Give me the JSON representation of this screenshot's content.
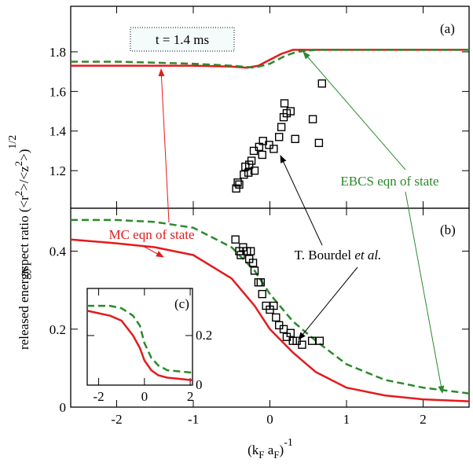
{
  "chart_data": [
    {
      "type": "line",
      "panel_label": "(a)",
      "annotations": [
        "t = 1.4 ms",
        "MC eqn of state",
        "EBCS eqn of state"
      ],
      "ylabel_parts": [
        "aspect ratio (<r",
        "2",
        ">/<z",
        "2",
        ">)",
        "1/2"
      ],
      "xlim": [
        -2.6,
        2.6
      ],
      "ylim": [
        1.01,
        2.03
      ],
      "xticks": [
        -2,
        -1,
        0,
        1,
        2
      ],
      "yticks": [
        1.2,
        1.4,
        1.6,
        1.8
      ],
      "xtick_labels": false,
      "series": [
        {
          "name": "MC eqn of state",
          "color": "#e41a1c",
          "dashed": false,
          "x": [
            -2.6,
            -2,
            -1,
            -0.5,
            -0.3,
            -0.15,
            0,
            0.15,
            0.3,
            0.6,
            1,
            2,
            2.6
          ],
          "values": [
            1.73,
            1.73,
            1.73,
            1.725,
            1.72,
            1.73,
            1.76,
            1.79,
            1.81,
            1.81,
            1.81,
            1.81,
            1.81
          ]
        },
        {
          "name": "EBCS eqn of state",
          "color": "#2a8a2a",
          "dashed": true,
          "x": [
            -2.6,
            -2,
            -1,
            -0.5,
            -0.2,
            0,
            0.1,
            0.2,
            0.35,
            0.6,
            1,
            2,
            2.6
          ],
          "values": [
            1.75,
            1.75,
            1.74,
            1.73,
            1.72,
            1.74,
            1.76,
            1.78,
            1.8,
            1.81,
            1.81,
            1.81,
            1.81
          ]
        },
        {
          "name": "T. Bourdel et al.",
          "color": "#000000",
          "marker": "square",
          "x": [
            -0.44,
            -0.42,
            -0.4,
            -0.34,
            -0.32,
            -0.27,
            -0.24,
            -0.28,
            -0.2,
            -0.21,
            -0.14,
            -0.1,
            -0.09,
            -0.01,
            0.05,
            0.12,
            0.15,
            0.18,
            0.22,
            0.19,
            0.27,
            0.33,
            0.56,
            0.64,
            0.68
          ],
          "values": [
            1.11,
            1.14,
            1.13,
            1.18,
            1.22,
            1.23,
            1.25,
            1.19,
            1.2,
            1.3,
            1.32,
            1.28,
            1.35,
            1.33,
            1.31,
            1.37,
            1.42,
            1.47,
            1.49,
            1.54,
            1.5,
            1.36,
            1.46,
            1.34,
            1.64
          ]
        }
      ]
    },
    {
      "type": "line",
      "panel_label": "(b)",
      "annotations": [
        "T. Bourdel ",
        "et al."
      ],
      "ylabel": "released energy",
      "xlabel_parts": [
        "(k",
        "F",
        " a",
        "F",
        ")",
        "-1"
      ],
      "xlim": [
        -2.6,
        2.6
      ],
      "ylim": [
        0,
        0.51
      ],
      "xticks": [
        -2,
        -1,
        0,
        1,
        2
      ],
      "yticks": [
        0,
        0.2,
        0.4
      ],
      "xtick_labels": true,
      "series": [
        {
          "name": "MC eqn of state",
          "color": "#e41a1c",
          "dashed": false,
          "x": [
            -2.6,
            -2,
            -1.5,
            -1,
            -0.5,
            -0.2,
            0,
            0.3,
            0.6,
            1,
            1.5,
            2,
            2.6
          ],
          "values": [
            0.43,
            0.42,
            0.41,
            0.39,
            0.33,
            0.26,
            0.2,
            0.14,
            0.09,
            0.05,
            0.03,
            0.02,
            0.015
          ]
        },
        {
          "name": "EBCS eqn of state",
          "color": "#2a8a2a",
          "dashed": true,
          "x": [
            -2.6,
            -2,
            -1.5,
            -1,
            -0.5,
            -0.2,
            0,
            0.3,
            0.6,
            1,
            1.5,
            2,
            2.6
          ],
          "values": [
            0.48,
            0.48,
            0.475,
            0.46,
            0.41,
            0.35,
            0.29,
            0.22,
            0.17,
            0.11,
            0.07,
            0.05,
            0.035
          ]
        },
        {
          "name": "T. Bourdel et al.",
          "color": "#000000",
          "marker": "square",
          "x": [
            -0.45,
            -0.4,
            -0.38,
            -0.35,
            -0.3,
            -0.27,
            -0.25,
            -0.22,
            -0.2,
            -0.15,
            -0.12,
            -0.1,
            -0.05,
            0,
            0.05,
            0.08,
            0.12,
            0.18,
            0.22,
            0.27,
            0.3,
            0.35,
            0.42,
            0.55,
            0.65
          ],
          "values": [
            0.43,
            0.4,
            0.39,
            0.41,
            0.4,
            0.38,
            0.4,
            0.37,
            0.35,
            0.32,
            0.32,
            0.29,
            0.26,
            0.25,
            0.26,
            0.23,
            0.21,
            0.2,
            0.18,
            0.19,
            0.17,
            0.17,
            0.16,
            0.17,
            0.17
          ]
        }
      ]
    },
    {
      "type": "line",
      "panel_label": "(c)",
      "xlim": [
        -2.5,
        2.1
      ],
      "ylim": [
        0,
        0.39
      ],
      "xticks": [
        -2,
        0,
        2
      ],
      "yticks": [
        0,
        0.2
      ],
      "xtick_labels": true,
      "ytick_side": "right",
      "series": [
        {
          "name": "MC eqn of state",
          "color": "#e41a1c",
          "dashed": false,
          "x": [
            -2.5,
            -1.5,
            -1,
            -0.5,
            -0.2,
            0,
            0.3,
            0.6,
            1,
            2.1
          ],
          "values": [
            0.3,
            0.28,
            0.26,
            0.2,
            0.15,
            0.1,
            0.06,
            0.04,
            0.03,
            0.02
          ]
        },
        {
          "name": "EBCS eqn of state",
          "color": "#2a8a2a",
          "dashed": true,
          "x": [
            -2.5,
            -1.5,
            -1,
            -0.5,
            -0.2,
            0,
            0.3,
            0.6,
            1,
            2.1
          ],
          "values": [
            0.32,
            0.32,
            0.31,
            0.28,
            0.24,
            0.17,
            0.11,
            0.08,
            0.06,
            0.05
          ]
        }
      ]
    }
  ]
}
